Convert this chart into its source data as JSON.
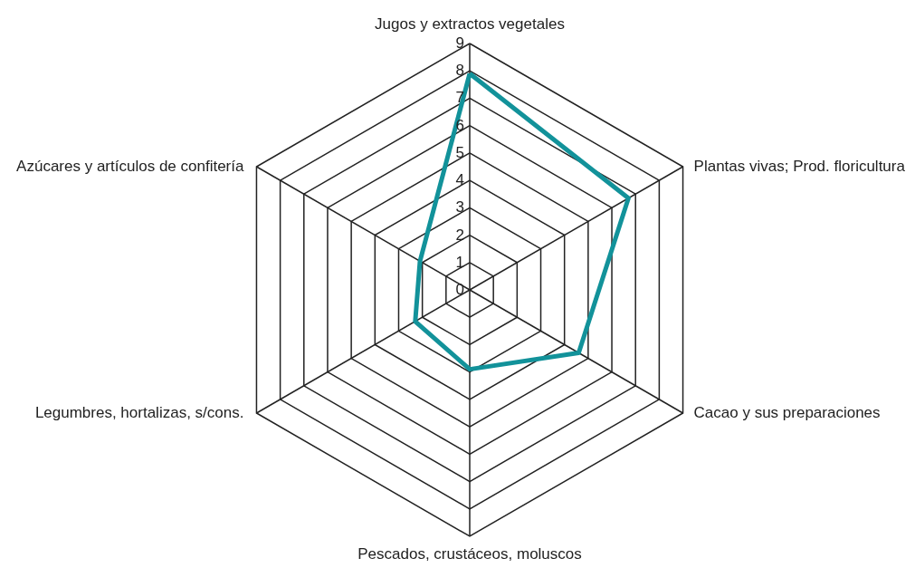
{
  "chart_data": {
    "type": "radar",
    "categories": [
      "Jugos y extractos vegetales",
      "Plantas vivas; Prod. floricultura",
      "Cacao y sus preparaciones",
      "Pescados, crustáceos, moluscos",
      "Legumbres, hortalizas, s/cons.",
      "Azúcares y artículos de confitería"
    ],
    "series": [
      {
        "color": "#12929a",
        "values": [
          7.9,
          6.7,
          4.6,
          2.9,
          2.3,
          2.1
        ]
      }
    ],
    "ylim": [
      0,
      9
    ],
    "yticks": [
      0,
      1,
      2,
      3,
      4,
      5,
      6,
      7,
      8,
      9
    ],
    "grid": true,
    "marker": "none",
    "line_style": "solid"
  }
}
